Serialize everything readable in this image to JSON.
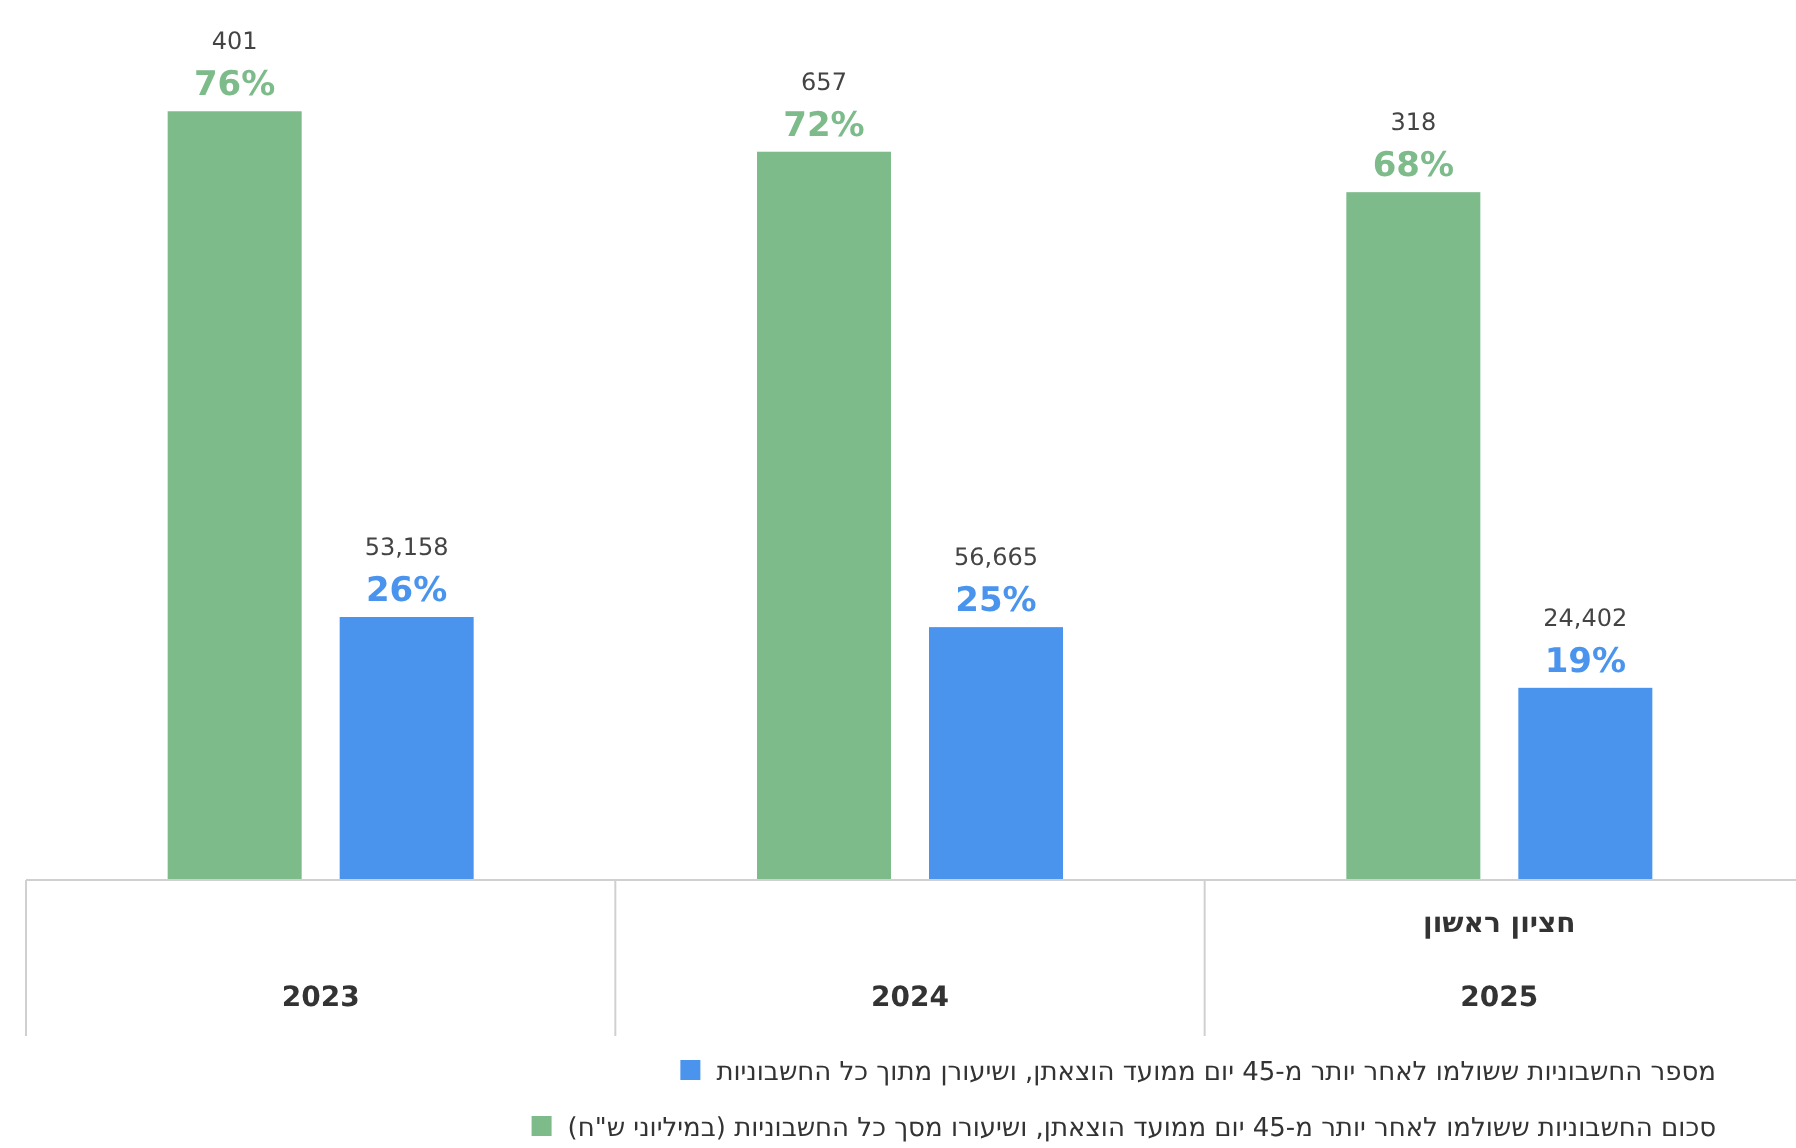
{
  "chart_data": {
    "type": "bar",
    "categories": [
      "2023",
      "2024",
      "חציון ראשון\n2025"
    ],
    "ylim": [
      0,
      87
    ],
    "tick_labels": "x",
    "legend": "bottom",
    "series": [
      {
        "name": "סכום החשבוניות ששולמו לאחר יותר מ-45 יום ממועד הוצאתן, ושיעורו מסך כל החשבוניות (במיליוני ש\"ח)",
        "color": "#7dbb8b",
        "values": [
          76,
          72,
          68
        ],
        "value_labels": [
          "401\n76%",
          "657\n72%",
          "318\n68%"
        ]
      },
      {
        "name": "מספר החשבוניות ששולמו לאחר יותר מ-45 יום ממועד הוצאתן, ושיעורן מתוך כל החשבוניות",
        "color": "#4a94ee",
        "values": [
          26,
          25,
          19
        ],
        "value_labels": [
          "53,158\n26%",
          "56,665\n25%",
          "24,402\n19%"
        ]
      }
    ]
  }
}
